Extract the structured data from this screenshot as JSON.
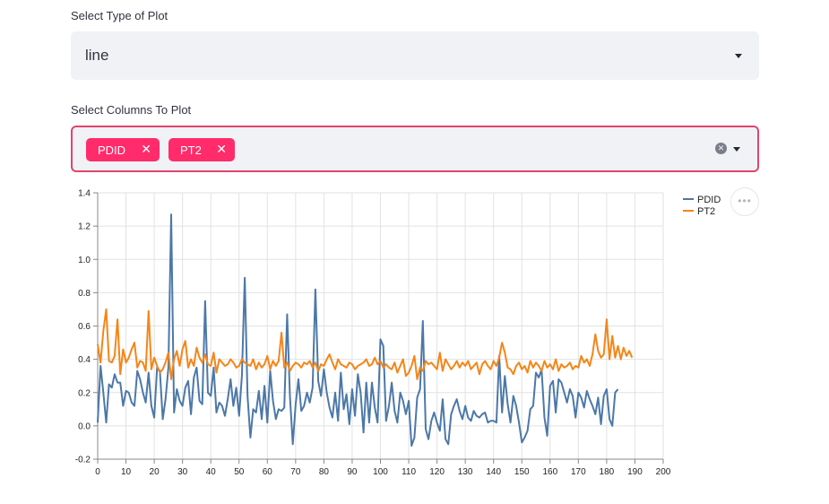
{
  "plot_type": {
    "label": "Select Type of Plot",
    "value": "line"
  },
  "columns": {
    "label": "Select Columns To Plot",
    "tags": [
      "PDID",
      "PT2"
    ],
    "remove_glyph": "✕",
    "clear_glyph": "✕"
  },
  "menu": {
    "glyph": "•••"
  },
  "chart_data": {
    "type": "line",
    "xlim": [
      0,
      200
    ],
    "ylim": [
      -0.2,
      1.4
    ],
    "x_ticks": [
      0,
      10,
      20,
      30,
      40,
      50,
      60,
      70,
      80,
      90,
      100,
      110,
      120,
      130,
      140,
      150,
      160,
      170,
      180,
      190,
      200
    ],
    "y_ticks": [
      -0.2,
      0.0,
      0.2,
      0.4,
      0.6,
      0.8,
      1.0,
      1.2,
      1.4
    ],
    "y_tick_labels": [
      "-0.2",
      "0.0",
      "0.2",
      "0.4",
      "0.6",
      "0.8",
      "1.0",
      "1.2",
      "1.4"
    ],
    "grid": true,
    "legend_position": "top-right",
    "series": [
      {
        "name": "PDID",
        "color": "#4c78a8",
        "x_start": 0,
        "values": [
          0.02,
          0.36,
          0.2,
          0.02,
          0.25,
          0.23,
          0.31,
          0.26,
          0.26,
          0.12,
          0.21,
          0.2,
          0.14,
          0.12,
          0.33,
          0.28,
          0.2,
          0.14,
          0.32,
          0.12,
          0.05,
          0.35,
          0.33,
          0.04,
          0.16,
          0.35,
          1.27,
          0.08,
          0.22,
          0.15,
          0.12,
          0.23,
          0.27,
          0.07,
          0.29,
          0.35,
          0.15,
          0.13,
          0.75,
          0.2,
          0.18,
          0.35,
          0.08,
          0.14,
          0.12,
          0.06,
          0.16,
          0.28,
          0.12,
          0.23,
          0.06,
          0.3,
          0.89,
          0.18,
          -0.07,
          0.1,
          0.08,
          0.21,
          0.04,
          0.24,
          0.02,
          0.33,
          0.15,
          0.04,
          0.1,
          0.09,
          0.11,
          0.67,
          0.18,
          -0.11,
          0.13,
          0.28,
          0.09,
          0.12,
          0.2,
          0.14,
          0.23,
          0.82,
          0.27,
          0.18,
          0.34,
          0.2,
          0.11,
          0.05,
          0.2,
          0.03,
          0.32,
          0.1,
          0.19,
          0.01,
          0.22,
          0.06,
          0.31,
          0.2,
          -0.04,
          0.26,
          0.02,
          0.26,
          0.11,
          0.02,
          0.52,
          0.48,
          0.03,
          0.12,
          0.26,
          0.09,
          0.02,
          0.2,
          0.15,
          0.07,
          0.15,
          -0.12,
          -0.07,
          0.17,
          0.22,
          0.63,
          -0.02,
          -0.08,
          0.03,
          0.08,
          0.02,
          -0.03,
          0.16,
          -0.08,
          -0.11,
          0.07,
          0.12,
          0.16,
          0.09,
          0.04,
          0.12,
          0.05,
          0.03,
          0.09,
          0.06,
          0.05,
          0.07,
          0.08,
          0.02,
          0.03,
          0.03,
          0.02,
          0.42,
          0.08,
          0.3,
          0.13,
          0.02,
          0.18,
          0.12,
          0.02,
          -0.1,
          -0.07,
          -0.03,
          0.1,
          0.12,
          0.32,
          0.29,
          0.34,
          0.05,
          -0.06,
          0.24,
          0.27,
          0.08,
          0.28,
          0.26,
          0.2,
          0.14,
          0.22,
          0.18,
          0.05,
          0.2,
          0.17,
          0.11,
          0.21,
          0.16,
          0.12,
          0.07,
          0.17,
          0.01,
          0.18,
          0.22,
          0.04,
          0.0,
          0.2,
          0.22
        ]
      },
      {
        "name": "PT2",
        "color": "#f58518",
        "x_start": 0,
        "values": [
          0.49,
          0.38,
          0.57,
          0.7,
          0.39,
          0.38,
          0.42,
          0.64,
          0.31,
          0.46,
          0.38,
          0.41,
          0.46,
          0.5,
          0.35,
          0.39,
          0.38,
          0.33,
          0.69,
          0.34,
          0.41,
          0.36,
          0.32,
          0.34,
          0.38,
          0.44,
          0.28,
          0.4,
          0.45,
          0.36,
          0.46,
          0.51,
          0.35,
          0.4,
          0.36,
          0.47,
          0.41,
          0.38,
          0.43,
          0.37,
          0.36,
          0.44,
          0.32,
          0.4,
          0.38,
          0.36,
          0.37,
          0.4,
          0.38,
          0.35,
          0.36,
          0.4,
          0.38,
          0.37,
          0.36,
          0.4,
          0.34,
          0.38,
          0.35,
          0.37,
          0.42,
          0.34,
          0.39,
          0.36,
          0.39,
          0.56,
          0.35,
          0.38,
          0.33,
          0.36,
          0.38,
          0.37,
          0.35,
          0.38,
          0.37,
          0.39,
          0.35,
          0.38,
          0.33,
          0.37,
          0.36,
          0.4,
          0.43,
          0.38,
          0.34,
          0.4,
          0.37,
          0.36,
          0.35,
          0.38,
          0.37,
          0.34,
          0.36,
          0.37,
          0.38,
          0.4,
          0.36,
          0.37,
          0.41,
          0.37,
          0.39,
          0.35,
          0.37,
          0.35,
          0.34,
          0.38,
          0.32,
          0.36,
          0.4,
          0.3,
          0.32,
          0.36,
          0.42,
          0.28,
          0.35,
          0.33,
          0.39,
          0.37,
          0.38,
          0.36,
          0.34,
          0.44,
          0.33,
          0.4,
          0.37,
          0.34,
          0.36,
          0.39,
          0.35,
          0.38,
          0.36,
          0.39,
          0.34,
          0.36,
          0.38,
          0.31,
          0.37,
          0.39,
          0.36,
          0.34,
          0.39,
          0.36,
          0.41,
          0.5,
          0.44,
          0.35,
          0.34,
          0.31,
          0.36,
          0.38,
          0.34,
          0.36,
          0.32,
          0.39,
          0.35,
          0.38,
          0.36,
          0.33,
          0.39,
          0.35,
          0.37,
          0.34,
          0.4,
          0.33,
          0.37,
          0.35,
          0.36,
          0.38,
          0.34,
          0.36,
          0.35,
          0.42,
          0.38,
          0.4,
          0.36,
          0.43,
          0.55,
          0.45,
          0.41,
          0.43,
          0.64,
          0.4,
          0.54,
          0.41,
          0.48,
          0.4,
          0.47,
          0.42,
          0.45,
          0.41
        ]
      }
    ]
  }
}
